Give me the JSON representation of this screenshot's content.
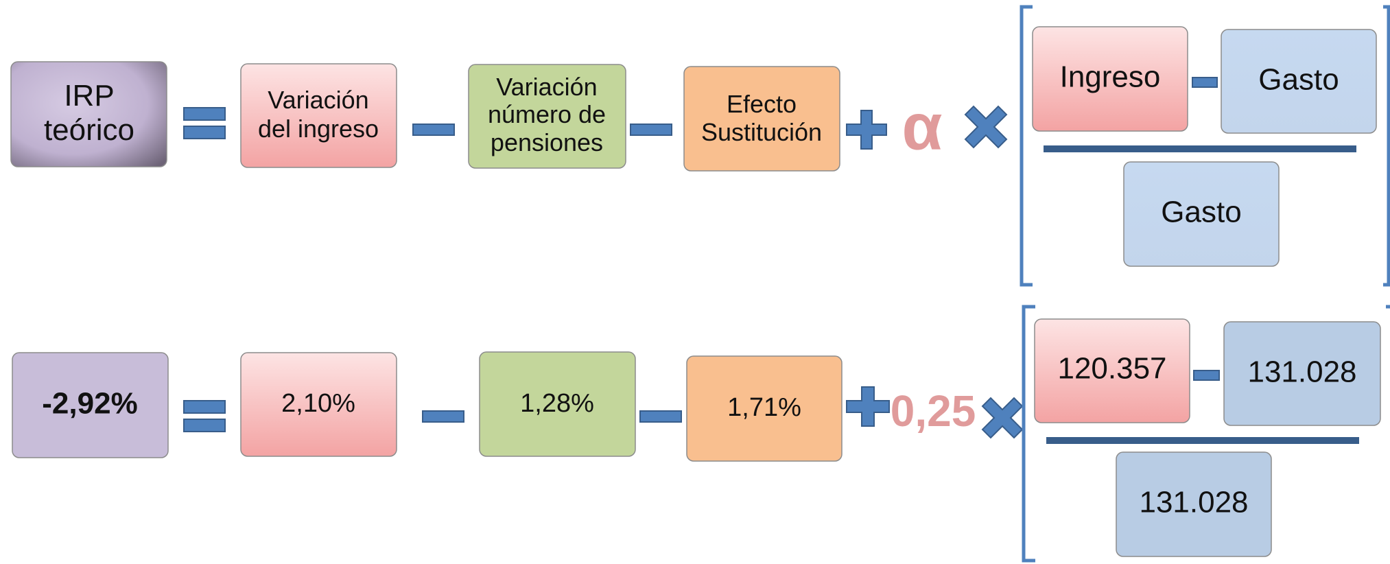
{
  "formula": {
    "result": [
      "IRP",
      "teórico"
    ],
    "income_change": [
      "Variación",
      "del ingreso"
    ],
    "pensions_change": [
      "Variación",
      "número de",
      "pensiones"
    ],
    "substitution": [
      "Efecto",
      "Sustitución"
    ],
    "alpha": "α",
    "numerator_left": "Ingreso",
    "numerator_right": "Gasto",
    "denominator": "Gasto"
  },
  "example": {
    "result": "-2,92%",
    "income_change": "2,10%",
    "pensions_change": "1,28%",
    "substitution": "1,71%",
    "alpha": "0,25",
    "numerator_left": "120.357",
    "numerator_right": "131.028",
    "denominator": "131.028"
  }
}
